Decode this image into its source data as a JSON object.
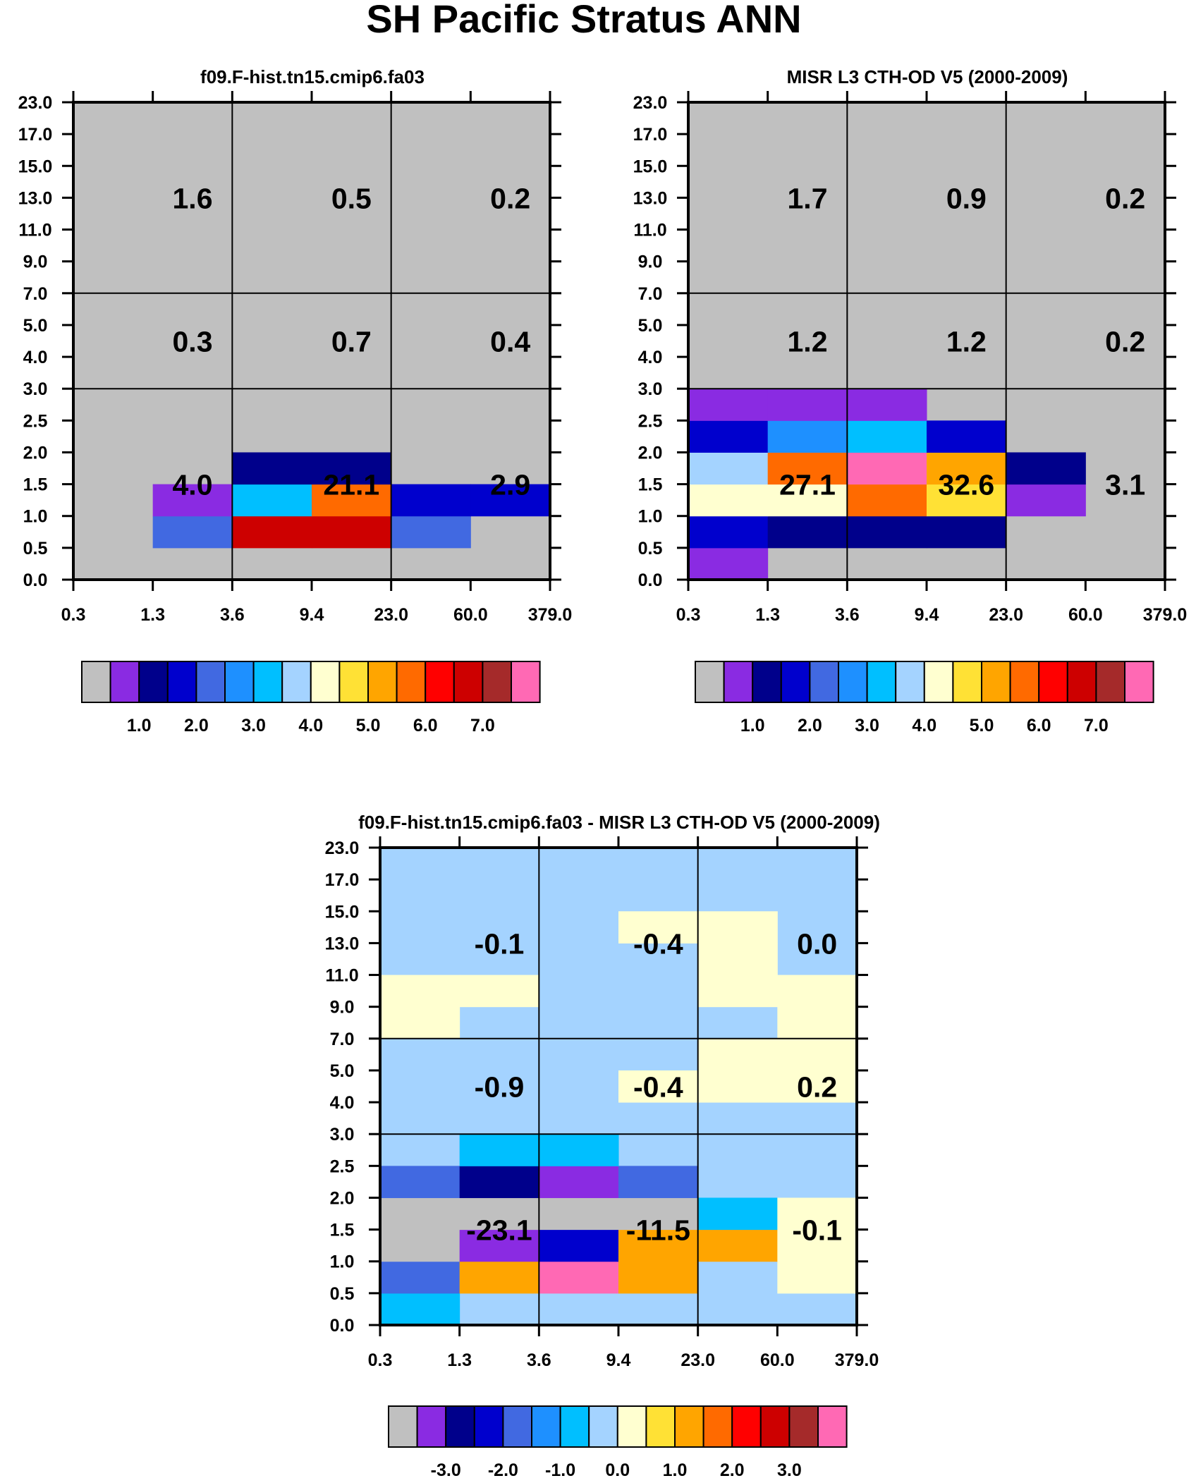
{
  "title": "SH Pacific Stratus ANN",
  "x_ticks": [
    "0.3",
    "1.3",
    "3.6",
    "9.4",
    "23.0",
    "60.0",
    "379.0"
  ],
  "y_ticks": [
    "0.0",
    "0.5",
    "1.0",
    "1.5",
    "2.0",
    "2.5",
    "3.0",
    "4.0",
    "5.0",
    "7.0",
    "9.0",
    "11.0",
    "13.0",
    "15.0",
    "17.0",
    "23.0"
  ],
  "colors": {
    "palette": [
      "#c0c0c0",
      "#8a2be2",
      "#00008b",
      "#0000cd",
      "#4169e1",
      "#1e90ff",
      "#00bfff",
      "#a4d3ff",
      "#ffffd0",
      "#ffe135",
      "#ffa500",
      "#ff6a00",
      "#ff0000",
      "#cd0000",
      "#a52a2a",
      "#ff69b4"
    ],
    "background": "#c0c0c0"
  },
  "chart_data": [
    {
      "type": "heatmap",
      "title": "f09.F-hist.tn15.cmip6.fa03",
      "xlabel": "",
      "ylabel": "",
      "x": [
        "0.3",
        "1.3",
        "3.6",
        "9.4",
        "23.0",
        "60.0",
        "379.0"
      ],
      "y": [
        "0.0",
        "0.5",
        "1.0",
        "1.5",
        "2.0",
        "2.5",
        "3.0",
        "4.0",
        "5.0",
        "7.0",
        "9.0",
        "11.0",
        "13.0",
        "15.0",
        "17.0",
        "23.0"
      ],
      "background": 0,
      "cells": [
        {
          "col": 1,
          "row": 1,
          "level": 4
        },
        {
          "col": 2,
          "row": 1,
          "level": 13
        },
        {
          "col": 3,
          "row": 1,
          "level": 13
        },
        {
          "col": 4,
          "row": 1,
          "level": 4
        },
        {
          "col": 1,
          "row": 2,
          "level": 1
        },
        {
          "col": 2,
          "row": 2,
          "level": 6
        },
        {
          "col": 3,
          "row": 2,
          "level": 11
        },
        {
          "col": 4,
          "row": 2,
          "level": 3
        },
        {
          "col": 5,
          "row": 2,
          "level": 3
        },
        {
          "col": 2,
          "row": 3,
          "level": 2
        },
        {
          "col": 3,
          "row": 3,
          "level": 2
        }
      ],
      "group_values": [
        {
          "x": 1.5,
          "y": 12.0,
          "text": "1.6"
        },
        {
          "x": 3.5,
          "y": 12.0,
          "text": "0.5"
        },
        {
          "x": 5.5,
          "y": 12.0,
          "text": "0.2"
        },
        {
          "x": 1.5,
          "y": 7.5,
          "text": "0.3"
        },
        {
          "x": 3.5,
          "y": 7.5,
          "text": "0.7"
        },
        {
          "x": 5.5,
          "y": 7.5,
          "text": "0.4"
        },
        {
          "x": 1.5,
          "y": 3.0,
          "text": "4.0"
        },
        {
          "x": 3.5,
          "y": 3.0,
          "text": "21.1"
        },
        {
          "x": 5.5,
          "y": 3.0,
          "text": "2.9"
        }
      ],
      "colorbar": {
        "labels": [
          "1.0",
          "2.0",
          "3.0",
          "4.0",
          "5.0",
          "6.0",
          "7.0"
        ]
      }
    },
    {
      "type": "heatmap",
      "title": "MISR L3 CTH-OD V5 (2000-2009)",
      "xlabel": "",
      "ylabel": "",
      "x": [
        "0.3",
        "1.3",
        "3.6",
        "9.4",
        "23.0",
        "60.0",
        "379.0"
      ],
      "y": [
        "0.0",
        "0.5",
        "1.0",
        "1.5",
        "2.0",
        "2.5",
        "3.0",
        "4.0",
        "5.0",
        "7.0",
        "9.0",
        "11.0",
        "13.0",
        "15.0",
        "17.0",
        "23.0"
      ],
      "background": 0,
      "cells": [
        {
          "col": 0,
          "row": 0,
          "level": 1
        },
        {
          "col": 0,
          "row": 1,
          "level": 3
        },
        {
          "col": 1,
          "row": 1,
          "level": 2
        },
        {
          "col": 2,
          "row": 1,
          "level": 2
        },
        {
          "col": 3,
          "row": 1,
          "level": 2
        },
        {
          "col": 0,
          "row": 2,
          "level": 8
        },
        {
          "col": 1,
          "row": 2,
          "level": 8
        },
        {
          "col": 2,
          "row": 2,
          "level": 11
        },
        {
          "col": 3,
          "row": 2,
          "level": 9
        },
        {
          "col": 4,
          "row": 2,
          "level": 1
        },
        {
          "col": 0,
          "row": 3,
          "level": 7
        },
        {
          "col": 1,
          "row": 3,
          "level": 11
        },
        {
          "col": 2,
          "row": 3,
          "level": 15
        },
        {
          "col": 3,
          "row": 3,
          "level": 10
        },
        {
          "col": 4,
          "row": 3,
          "level": 2
        },
        {
          "col": 0,
          "row": 4,
          "level": 3
        },
        {
          "col": 1,
          "row": 4,
          "level": 5
        },
        {
          "col": 2,
          "row": 4,
          "level": 6
        },
        {
          "col": 3,
          "row": 4,
          "level": 3
        },
        {
          "col": 0,
          "row": 5,
          "level": 1
        },
        {
          "col": 1,
          "row": 5,
          "level": 1
        },
        {
          "col": 2,
          "row": 5,
          "level": 1
        }
      ],
      "group_values": [
        {
          "x": 1.5,
          "y": 12.0,
          "text": "1.7"
        },
        {
          "x": 3.5,
          "y": 12.0,
          "text": "0.9"
        },
        {
          "x": 5.5,
          "y": 12.0,
          "text": "0.2"
        },
        {
          "x": 1.5,
          "y": 7.5,
          "text": "1.2"
        },
        {
          "x": 3.5,
          "y": 7.5,
          "text": "1.2"
        },
        {
          "x": 5.5,
          "y": 7.5,
          "text": "0.2"
        },
        {
          "x": 1.5,
          "y": 3.0,
          "text": "27.1"
        },
        {
          "x": 3.5,
          "y": 3.0,
          "text": "32.6"
        },
        {
          "x": 5.5,
          "y": 3.0,
          "text": "3.1"
        }
      ],
      "colorbar": {
        "labels": [
          "1.0",
          "2.0",
          "3.0",
          "4.0",
          "5.0",
          "6.0",
          "7.0"
        ]
      }
    },
    {
      "type": "heatmap",
      "title": "f09.F-hist.tn15.cmip6.fa03 - MISR L3 CTH-OD V5 (2000-2009)",
      "xlabel": "",
      "ylabel": "",
      "x": [
        "0.3",
        "1.3",
        "3.6",
        "9.4",
        "23.0",
        "60.0",
        "379.0"
      ],
      "y": [
        "0.0",
        "0.5",
        "1.0",
        "1.5",
        "2.0",
        "2.5",
        "3.0",
        "4.0",
        "5.0",
        "7.0",
        "9.0",
        "11.0",
        "13.0",
        "15.0",
        "17.0",
        "23.0"
      ],
      "background": 7,
      "cells": [
        {
          "col": 0,
          "row": 0,
          "level": 6
        },
        {
          "col": 0,
          "row": 1,
          "level": 4
        },
        {
          "col": 1,
          "row": 1,
          "level": 10
        },
        {
          "col": 2,
          "row": 1,
          "level": 15
        },
        {
          "col": 3,
          "row": 1,
          "level": 10
        },
        {
          "col": 5,
          "row": 1,
          "level": 8
        },
        {
          "col": 0,
          "row": 2,
          "level": 0
        },
        {
          "col": 1,
          "row": 2,
          "level": 1
        },
        {
          "col": 2,
          "row": 2,
          "level": 3
        },
        {
          "col": 3,
          "row": 2,
          "level": 10
        },
        {
          "col": 4,
          "row": 2,
          "level": 10
        },
        {
          "col": 5,
          "row": 2,
          "level": 8
        },
        {
          "col": 0,
          "row": 3,
          "level": 0
        },
        {
          "col": 1,
          "row": 3,
          "level": 0
        },
        {
          "col": 2,
          "row": 3,
          "level": 0
        },
        {
          "col": 3,
          "row": 3,
          "level": 0
        },
        {
          "col": 4,
          "row": 3,
          "level": 6
        },
        {
          "col": 5,
          "row": 3,
          "level": 8
        },
        {
          "col": 0,
          "row": 4,
          "level": 4
        },
        {
          "col": 1,
          "row": 4,
          "level": 2
        },
        {
          "col": 2,
          "row": 4,
          "level": 1
        },
        {
          "col": 3,
          "row": 4,
          "level": 4
        },
        {
          "col": 1,
          "row": 5,
          "level": 6
        },
        {
          "col": 2,
          "row": 5,
          "level": 6
        },
        {
          "col": 3,
          "row": 7,
          "level": 8
        },
        {
          "col": 4,
          "row": 7,
          "level": 8
        },
        {
          "col": 5,
          "row": 7,
          "level": 8
        },
        {
          "col": 4,
          "row": 8,
          "level": 8
        },
        {
          "col": 5,
          "row": 8,
          "level": 8
        },
        {
          "col": 0,
          "row": 9,
          "level": 8
        },
        {
          "col": 5,
          "row": 9,
          "level": 8
        },
        {
          "col": 0,
          "row": 10,
          "level": 8
        },
        {
          "col": 1,
          "row": 10,
          "level": 8
        },
        {
          "col": 4,
          "row": 10,
          "level": 8
        },
        {
          "col": 5,
          "row": 10,
          "level": 8
        },
        {
          "col": 4,
          "row": 11,
          "level": 8
        },
        {
          "col": 3,
          "row": 12,
          "level": 8
        },
        {
          "col": 4,
          "row": 12,
          "level": 8
        }
      ],
      "group_values": [
        {
          "x": 1.5,
          "y": 12.0,
          "text": "-0.1"
        },
        {
          "x": 3.5,
          "y": 12.0,
          "text": "-0.4"
        },
        {
          "x": 5.5,
          "y": 12.0,
          "text": "0.0"
        },
        {
          "x": 1.5,
          "y": 7.5,
          "text": "-0.9"
        },
        {
          "x": 3.5,
          "y": 7.5,
          "text": "-0.4"
        },
        {
          "x": 5.5,
          "y": 7.5,
          "text": "0.2"
        },
        {
          "x": 1.5,
          "y": 3.0,
          "text": "-23.1"
        },
        {
          "x": 3.5,
          "y": 3.0,
          "text": "-11.5"
        },
        {
          "x": 5.5,
          "y": 3.0,
          "text": "-0.1"
        }
      ],
      "colorbar": {
        "labels": [
          "-3.0",
          "-2.0",
          "-1.0",
          "0.0",
          "1.0",
          "2.0",
          "3.0"
        ]
      }
    }
  ]
}
